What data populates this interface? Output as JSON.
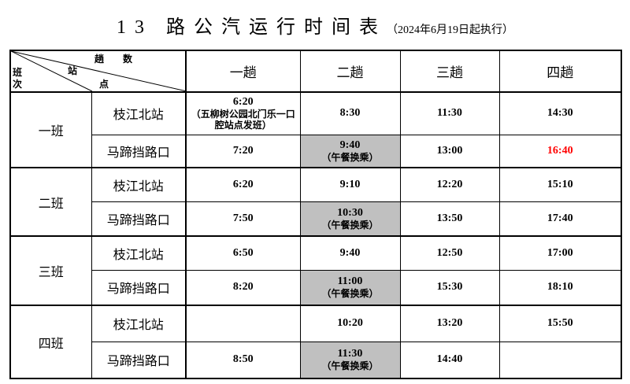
{
  "title": {
    "main": "13 路公汽运行时间表",
    "sub": "（2024年6月19日起执行）"
  },
  "header": {
    "corner": {
      "trips": "趟　　数",
      "station_a": "站",
      "station_b": "点",
      "shift_a": "班",
      "shift_b": "次"
    },
    "trips": [
      "一趟",
      "二趟",
      "三趟",
      "四趟"
    ]
  },
  "groups": [
    {
      "label": "一班",
      "rows": [
        {
          "station": "枝江北站",
          "times": [
            {
              "time": "6:20",
              "note": "（五柳树公园北门乐一口腔站点发班）"
            },
            {
              "time": "8:30"
            },
            {
              "time": "11:30"
            },
            {
              "time": "14:30"
            }
          ]
        },
        {
          "station": "马蹄挡路口",
          "times": [
            {
              "time": "7:20"
            },
            {
              "time": "9:40",
              "note": "（午餐换乘）",
              "highlight": true
            },
            {
              "time": "13:00"
            },
            {
              "time": "16:40",
              "color": "#ff0000"
            }
          ]
        }
      ]
    },
    {
      "label": "二班",
      "rows": [
        {
          "station": "枝江北站",
          "times": [
            {
              "time": "6:20"
            },
            {
              "time": "9:10"
            },
            {
              "time": "12:20"
            },
            {
              "time": "15:10"
            }
          ]
        },
        {
          "station": "马蹄挡路口",
          "times": [
            {
              "time": "7:50"
            },
            {
              "time": "10:30",
              "note": "（午餐换乘）",
              "highlight": true
            },
            {
              "time": "13:50"
            },
            {
              "time": "17:40"
            }
          ]
        }
      ]
    },
    {
      "label": "三班",
      "rows": [
        {
          "station": "枝江北站",
          "times": [
            {
              "time": "6:50"
            },
            {
              "time": "9:40"
            },
            {
              "time": "12:50"
            },
            {
              "time": "17:00"
            }
          ]
        },
        {
          "station": "马蹄挡路口",
          "times": [
            {
              "time": "8:20"
            },
            {
              "time": "11:00",
              "note": "（午餐换乘）",
              "highlight": true
            },
            {
              "time": "15:30"
            },
            {
              "time": "18:10"
            }
          ]
        }
      ]
    },
    {
      "label": "四班",
      "rows": [
        {
          "station": "枝江北站",
          "times": [
            {
              "time": ""
            },
            {
              "time": "10:20"
            },
            {
              "time": "13:20"
            },
            {
              "time": "15:50"
            }
          ]
        },
        {
          "station": "马蹄挡路口",
          "times": [
            {
              "time": "8:50"
            },
            {
              "time": "11:30",
              "note": "（午餐换乘）",
              "highlight": true
            },
            {
              "time": "14:40"
            },
            {
              "time": ""
            }
          ]
        }
      ]
    }
  ],
  "colors": {
    "highlight": "#c0c0c0",
    "alert": "#ff0000"
  }
}
